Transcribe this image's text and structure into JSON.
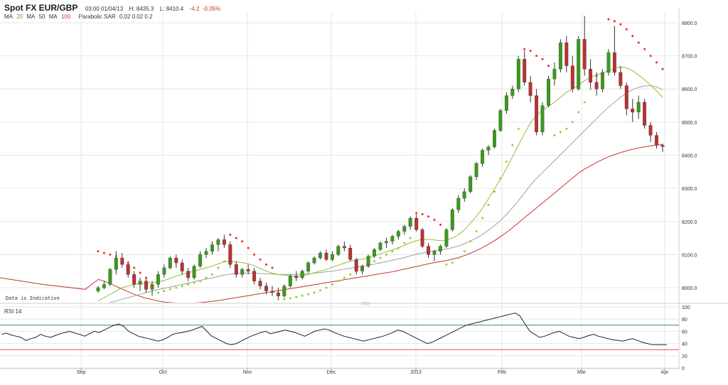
{
  "header": {
    "title": "Spot FX EUR/GBP",
    "datetime": "03:00 01/04/13",
    "high": "H: 8435.3",
    "low": "L: 8410.4",
    "change": "-4.2",
    "change_pct": "-0.05%"
  },
  "legend": {
    "ma_label": "MA",
    "ma20": "20",
    "ma50": "50",
    "ma100": "100",
    "sar_label": "Parabolic SAR",
    "sar_params": "0.02 0.02 0.2"
  },
  "note": "Data is Indicative",
  "rsi_label": "RSI 14",
  "colors": {
    "up": "#3a9a1e",
    "down": "#b83232",
    "ma20": "#8fbf3a",
    "ma50": "#a0a0a0",
    "ma100": "#c0392b",
    "sar_up": "#8fd12a",
    "sar_down": "#e03030",
    "rsi_upper": "#3a8a7a",
    "rsi_lower": "#e05050",
    "grid": "#e6e6e6"
  },
  "chart_data": [
    {
      "type": "candlestick",
      "title": "Spot FX EUR/GBP",
      "y_ticks": [
        "8000.0",
        "8100.0",
        "8200.0",
        "8300.0",
        "8400.0",
        "8500.0",
        "8600.0",
        "8700.0",
        "8800.0"
      ],
      "ylim": [
        7955,
        8830
      ],
      "x_ticks": [
        "Sep",
        "Oct",
        "Nov",
        "Dec",
        "2013",
        "Feb",
        "Mar",
        "Apr"
      ],
      "grid": true,
      "candles": [
        [
          7990,
          8005,
          7985,
          8000
        ],
        [
          8000,
          8020,
          7995,
          8010
        ],
        [
          8010,
          8060,
          8005,
          8055
        ],
        [
          8055,
          8110,
          8040,
          8090
        ],
        [
          8090,
          8105,
          8060,
          8070
        ],
        [
          8070,
          8080,
          8030,
          8040
        ],
        [
          8040,
          8050,
          8000,
          8010
        ],
        [
          8010,
          8030,
          7990,
          8020
        ],
        [
          8020,
          8030,
          7985,
          7995
        ],
        [
          7995,
          8020,
          7975,
          8010
        ],
        [
          8010,
          8050,
          8000,
          8040
        ],
        [
          8040,
          8070,
          8030,
          8060
        ],
        [
          8060,
          8095,
          8055,
          8090
        ],
        [
          8090,
          8100,
          8060,
          8075
        ],
        [
          8075,
          8085,
          8040,
          8050
        ],
        [
          8050,
          8060,
          8020,
          8030
        ],
        [
          8030,
          8070,
          8025,
          8065
        ],
        [
          8065,
          8110,
          8060,
          8100
        ],
        [
          8100,
          8120,
          8090,
          8110
        ],
        [
          8110,
          8140,
          8100,
          8130
        ],
        [
          8130,
          8150,
          8110,
          8145
        ],
        [
          8145,
          8160,
          8120,
          8130
        ],
        [
          8130,
          8140,
          8060,
          8070
        ],
        [
          8070,
          8080,
          8030,
          8040
        ],
        [
          8040,
          8060,
          8030,
          8055
        ],
        [
          8055,
          8070,
          8040,
          8050
        ],
        [
          8050,
          8060,
          8010,
          8020
        ],
        [
          8020,
          8030,
          7995,
          8005
        ],
        [
          8005,
          8015,
          7980,
          7990
        ],
        [
          7990,
          8005,
          7975,
          7985
        ],
        [
          7985,
          8000,
          7965,
          7975
        ],
        [
          7975,
          8010,
          7970,
          8005
        ],
        [
          8005,
          8040,
          8000,
          8035
        ],
        [
          8035,
          8050,
          8020,
          8030
        ],
        [
          8030,
          8055,
          8025,
          8050
        ],
        [
          8050,
          8080,
          8045,
          8075
        ],
        [
          8075,
          8095,
          8070,
          8090
        ],
        [
          8090,
          8110,
          8085,
          8105
        ],
        [
          8105,
          8115,
          8080,
          8085
        ],
        [
          8085,
          8110,
          8080,
          8100
        ],
        [
          8100,
          8130,
          8095,
          8125
        ],
        [
          8125,
          8140,
          8110,
          8120
        ],
        [
          8120,
          8130,
          8080,
          8085
        ],
        [
          8085,
          8090,
          8040,
          8050
        ],
        [
          8050,
          8070,
          8040,
          8065
        ],
        [
          8065,
          8100,
          8060,
          8095
        ],
        [
          8095,
          8120,
          8090,
          8115
        ],
        [
          8115,
          8140,
          8110,
          8135
        ],
        [
          8135,
          8150,
          8120,
          8140
        ],
        [
          8140,
          8160,
          8130,
          8155
        ],
        [
          8155,
          8175,
          8145,
          8170
        ],
        [
          8170,
          8190,
          8160,
          8185
        ],
        [
          8185,
          8215,
          8175,
          8210
        ],
        [
          8210,
          8220,
          8170,
          8175
        ],
        [
          8175,
          8180,
          8120,
          8125
        ],
        [
          8125,
          8135,
          8090,
          8100
        ],
        [
          8100,
          8115,
          8080,
          8110
        ],
        [
          8110,
          8130,
          8100,
          8125
        ],
        [
          8125,
          8180,
          8120,
          8175
        ],
        [
          8175,
          8240,
          8170,
          8235
        ],
        [
          8235,
          8280,
          8225,
          8270
        ],
        [
          8270,
          8300,
          8260,
          8290
        ],
        [
          8290,
          8340,
          8285,
          8335
        ],
        [
          8335,
          8380,
          8325,
          8375
        ],
        [
          8375,
          8420,
          8365,
          8415
        ],
        [
          8415,
          8430,
          8400,
          8425
        ],
        [
          8425,
          8480,
          8420,
          8475
        ],
        [
          8475,
          8540,
          8470,
          8535
        ],
        [
          8535,
          8590,
          8525,
          8580
        ],
        [
          8580,
          8610,
          8570,
          8600
        ],
        [
          8600,
          8700,
          8590,
          8690
        ],
        [
          8690,
          8715,
          8610,
          8620
        ],
        [
          8620,
          8640,
          8560,
          8580
        ],
        [
          8580,
          8600,
          8460,
          8470
        ],
        [
          8470,
          8560,
          8460,
          8550
        ],
        [
          8550,
          8640,
          8545,
          8630
        ],
        [
          8630,
          8680,
          8610,
          8660
        ],
        [
          8660,
          8750,
          8650,
          8740
        ],
        [
          8740,
          8760,
          8650,
          8670
        ],
        [
          8670,
          8700,
          8590,
          8600
        ],
        [
          8600,
          8760,
          8595,
          8750
        ],
        [
          8750,
          8820,
          8640,
          8660
        ],
        [
          8660,
          8690,
          8600,
          8620
        ],
        [
          8620,
          8650,
          8580,
          8600
        ],
        [
          8600,
          8660,
          8590,
          8650
        ],
        [
          8650,
          8720,
          8640,
          8710
        ],
        [
          8710,
          8790,
          8640,
          8650
        ],
        [
          8650,
          8670,
          8600,
          8610
        ],
        [
          8610,
          8620,
          8520,
          8540
        ],
        [
          8540,
          8570,
          8500,
          8530
        ],
        [
          8530,
          8580,
          8510,
          8560
        ],
        [
          8560,
          8570,
          8480,
          8490
        ],
        [
          8490,
          8500,
          8440,
          8460
        ],
        [
          8460,
          8470,
          8420,
          8430
        ],
        [
          8430,
          8435,
          8410,
          8426
        ]
      ],
      "sar": [
        8110,
        8105,
        8100,
        8095,
        8085,
        8075,
        8060,
        8045,
        8030,
        8005,
        7985,
        7990,
        7995,
        8000,
        8005,
        8010,
        8015,
        8020,
        8030,
        8040,
        8060,
        8080,
        8160,
        8150,
        8140,
        8120,
        8100,
        8085,
        8070,
        8060,
        7965,
        7965,
        7968,
        7972,
        7976,
        7980,
        7985,
        7992,
        8000,
        8010,
        8020,
        8030,
        8040,
        8050,
        8060,
        8070,
        8080,
        8090,
        8100,
        8110,
        8120,
        8135,
        8150,
        8225,
        8222,
        8215,
        8205,
        8190,
        8070,
        8075,
        8090,
        8110,
        8140,
        8170,
        8210,
        8250,
        8290,
        8330,
        8380,
        8430,
        8480,
        8720,
        8715,
        8700,
        8690,
        8670,
        8460,
        8470,
        8480,
        8500,
        8530,
        8560,
        8600,
        8640,
        8640,
        8810,
        8805,
        8795,
        8780,
        8760,
        8740,
        8720,
        8700,
        8680,
        8660
      ],
      "ma20": [
        7960,
        7970,
        7980,
        7990,
        8000,
        8005,
        8010,
        8012,
        8014,
        8015,
        8018,
        8022,
        8028,
        8035,
        8040,
        8045,
        8050,
        8055,
        8060,
        8065,
        8072,
        8078,
        8080,
        8078,
        8076,
        8072,
        8066,
        8058,
        8050,
        8044,
        8040,
        8038,
        8036,
        8035,
        8036,
        8040,
        8045,
        8050,
        8055,
        8062,
        8068,
        8074,
        8080,
        8084,
        8086,
        8090,
        8096,
        8102,
        8108,
        8114,
        8120,
        8128,
        8136,
        8142,
        8146,
        8146,
        8144,
        8142,
        8144,
        8150,
        8160,
        8175,
        8195,
        8215,
        8240,
        8268,
        8298,
        8328,
        8360,
        8395,
        8430,
        8465,
        8498,
        8520,
        8535,
        8548,
        8560,
        8575,
        8590,
        8600,
        8612,
        8625,
        8635,
        8642,
        8648,
        8655,
        8662,
        8666,
        8664,
        8655,
        8642,
        8628,
        8612,
        8594,
        8575
      ],
      "ma50": [
        7945,
        7950,
        7955,
        7960,
        7965,
        7970,
        7975,
        7980,
        7985,
        7990,
        7994,
        7998,
        8002,
        8006,
        8010,
        8014,
        8018,
        8022,
        8026,
        8030,
        8034,
        8038,
        8041,
        8043,
        8044,
        8044,
        8044,
        8043,
        8042,
        8041,
        8040,
        8040,
        8040,
        8040,
        8041,
        8042,
        8044,
        8046,
        8048,
        8050,
        8053,
        8056,
        8059,
        8062,
        8065,
        8068,
        8071,
        8075,
        8079,
        8083,
        8087,
        8091,
        8096,
        8101,
        8105,
        8108,
        8111,
        8114,
        8117,
        8121,
        8126,
        8133,
        8141,
        8150,
        8161,
        8173,
        8187,
        8203,
        8221,
        8241,
        8263,
        8286,
        8310,
        8330,
        8348,
        8366,
        8384,
        8402,
        8420,
        8438,
        8456,
        8474,
        8492,
        8510,
        8528,
        8545,
        8560,
        8575,
        8588,
        8598,
        8605,
        8609,
        8610,
        8606,
        8598
      ],
      "ma100": [
        8025,
        8020,
        8012,
        8004,
        7996,
        7988,
        7980,
        7974,
        7968,
        7964,
        7960,
        7957,
        7955,
        7954,
        7953,
        7953,
        7954,
        7955,
        7957,
        7959,
        7961,
        7964,
        7967,
        7970,
        7973,
        7976,
        7979,
        7982,
        7985,
        7988,
        7991,
        7994,
        7997,
        8000,
        8003,
        8006,
        8009,
        8012,
        8015,
        8018,
        8021,
        8024,
        8027,
        8030,
        8033,
        8036,
        8039,
        8042,
        8045,
        8048,
        8052,
        8056,
        8060,
        8064,
        8068,
        8072,
        8076,
        8079,
        8082,
        8086,
        8091,
        8097,
        8104,
        8112,
        8121,
        8131,
        8142,
        8154,
        8167,
        8181,
        8196,
        8211,
        8226,
        8241,
        8256,
        8271,
        8286,
        8301,
        8316,
        8331,
        8346,
        8358,
        8368,
        8378,
        8387,
        8395,
        8402,
        8408,
        8413,
        8418,
        8422,
        8425,
        8428,
        8431,
        8432
      ]
    },
    {
      "type": "line",
      "title": "RSI 14",
      "y_ticks": [
        "0",
        "20",
        "40",
        "60",
        "80",
        "100"
      ],
      "ylim": [
        0,
        100
      ],
      "levels": [
        30,
        70
      ],
      "values": [
        55,
        57,
        54,
        52,
        50,
        45,
        48,
        50,
        55,
        52,
        50,
        53,
        56,
        58,
        60,
        57,
        55,
        52,
        56,
        60,
        58,
        62,
        66,
        70,
        72,
        68,
        60,
        56,
        52,
        50,
        48,
        46,
        44,
        46,
        50,
        55,
        57,
        58,
        60,
        62,
        65,
        68,
        60,
        52,
        48,
        44,
        40,
        38,
        40,
        44,
        48,
        52,
        55,
        58,
        60,
        56,
        58,
        60,
        62,
        60,
        58,
        55,
        52,
        56,
        60,
        62,
        64,
        62,
        58,
        55,
        52,
        50,
        48,
        46,
        44,
        46,
        48,
        50,
        52,
        55,
        58,
        62,
        60,
        56,
        52,
        48,
        44,
        40,
        42,
        46,
        50,
        54,
        58,
        62,
        66,
        70,
        72,
        74,
        76,
        78,
        80,
        82,
        84,
        86,
        88,
        90,
        85,
        72,
        60,
        55,
        50,
        52,
        55,
        58,
        60,
        56,
        52,
        50,
        48,
        50,
        53,
        55,
        52,
        50,
        48,
        46,
        45,
        44,
        46,
        48,
        45,
        42,
        40,
        38,
        38,
        38,
        38
      ]
    }
  ]
}
